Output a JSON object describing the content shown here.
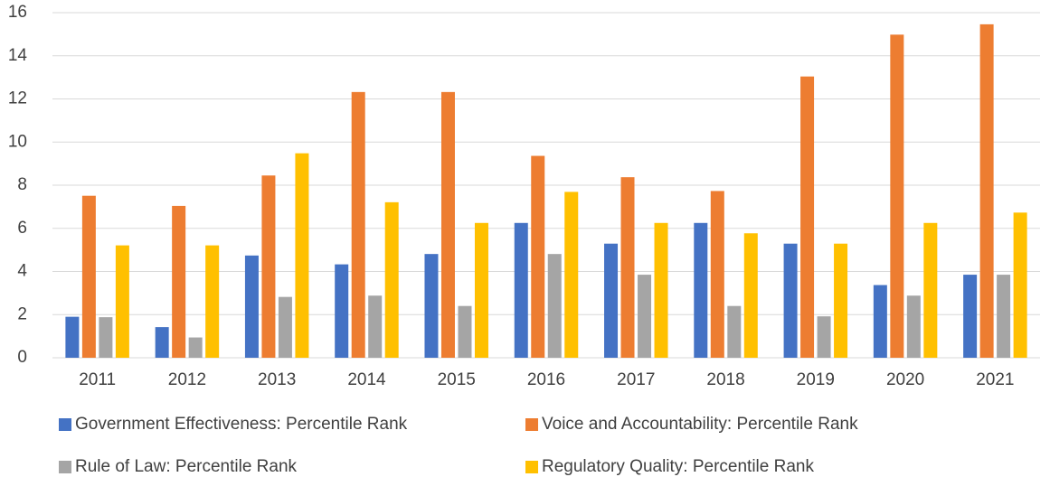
{
  "chart_data": {
    "type": "bar",
    "categories": [
      "2011",
      "2012",
      "2013",
      "2014",
      "2015",
      "2016",
      "2017",
      "2018",
      "2019",
      "2020",
      "2021"
    ],
    "series": [
      {
        "name": "Government Effectiveness: Percentile Rank",
        "color": "#4472c4",
        "values": [
          1.9,
          1.42,
          4.74,
          4.33,
          4.81,
          6.25,
          5.29,
          6.25,
          5.29,
          3.37,
          3.85
        ]
      },
      {
        "name": "Voice and Accountability: Percentile Rank",
        "color": "#ed7d31",
        "values": [
          7.51,
          7.04,
          8.45,
          12.32,
          12.32,
          9.36,
          8.37,
          7.73,
          13.04,
          14.98,
          15.46
        ]
      },
      {
        "name": "Rule of Law: Percentile Rank",
        "color": "#a5a5a5",
        "values": [
          1.88,
          0.94,
          2.82,
          2.88,
          2.4,
          4.81,
          3.85,
          2.4,
          1.92,
          2.88,
          3.85
        ]
      },
      {
        "name": "Regulatory Quality: Percentile Rank",
        "color": "#ffc000",
        "values": [
          5.21,
          5.21,
          9.48,
          7.21,
          6.25,
          7.69,
          6.25,
          5.77,
          5.29,
          6.25,
          6.73
        ]
      }
    ],
    "ylim": [
      0,
      16
    ],
    "yticks": [
      0,
      2,
      4,
      6,
      8,
      10,
      12,
      14,
      16
    ],
    "grid": true,
    "legend": "bottom"
  }
}
